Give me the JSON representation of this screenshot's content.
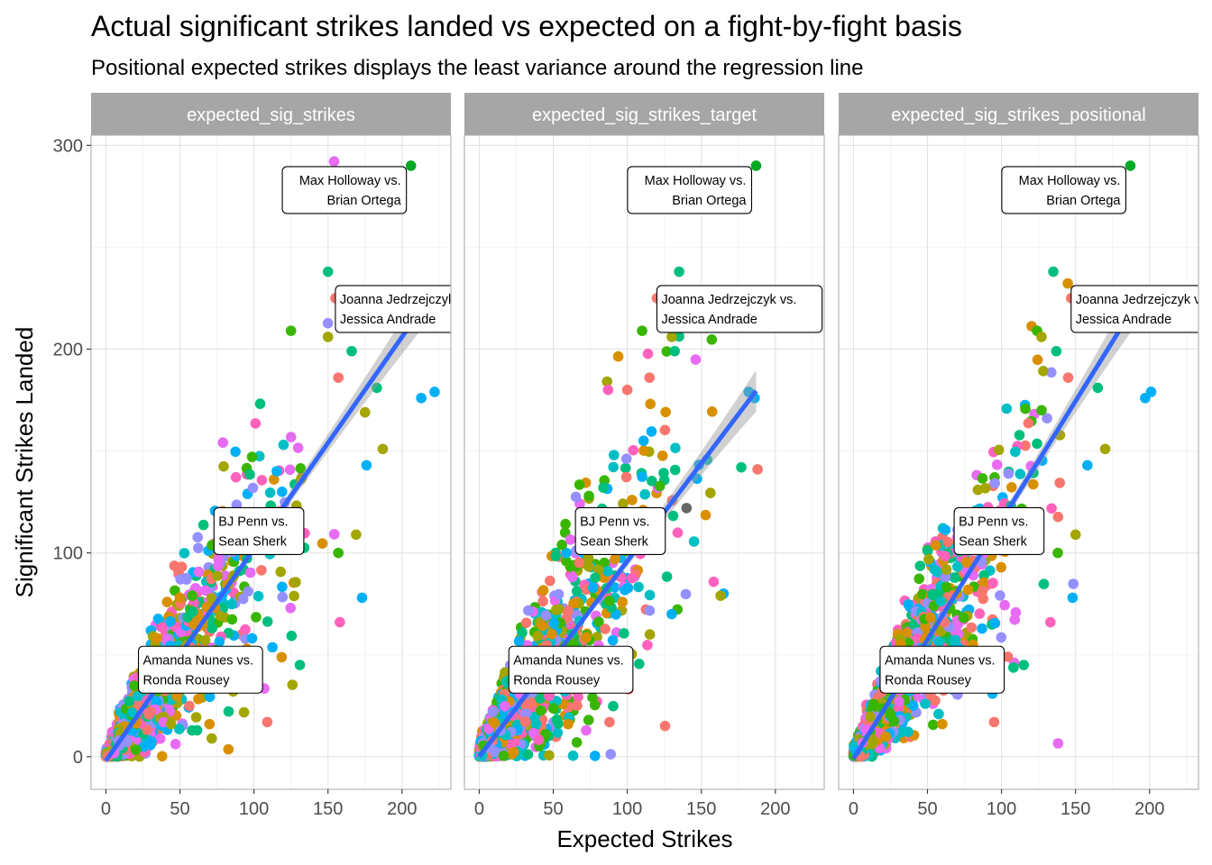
{
  "chart_data": {
    "type": "scatter",
    "title": "Actual significant strikes landed vs expected on a fight-by-fight basis",
    "subtitle": "Positional expected strikes displays the least variance around the regression line",
    "xlabel": "Expected Strikes",
    "ylabel": "Significant Strikes Landed",
    "xlim": [
      -10,
      233
    ],
    "ylim": [
      -16,
      305
    ],
    "x_ticks": [
      0,
      50,
      100,
      150,
      200
    ],
    "y_ticks": [
      0,
      100,
      200,
      300
    ],
    "grid": true,
    "legend": "none",
    "point_colors": [
      "#F8766D",
      "#D89000",
      "#A3A500",
      "#39B600",
      "#00BF7D",
      "#00BFC4",
      "#00B0F6",
      "#9590FF",
      "#E76BF3",
      "#FF62BC"
    ],
    "regression_color": "#3366FF",
    "panels": [
      {
        "name": "expected_sig_strikes",
        "slope": 1.04,
        "intercept": -2,
        "fit_xmax": 215,
        "spread": 0.3,
        "highlight_points": [
          {
            "x": 206,
            "y": 290,
            "color": "#00A824"
          },
          {
            "x": 150,
            "y": 238,
            "color": "#00BF7D"
          },
          {
            "x": 155,
            "y": 225,
            "color": "#F8766D"
          },
          {
            "x": 125,
            "y": 209,
            "color": "#39B600"
          },
          {
            "x": 150,
            "y": 206,
            "color": "#A3A500"
          },
          {
            "x": 166,
            "y": 199,
            "color": "#00BF7D"
          },
          {
            "x": 157,
            "y": 186,
            "color": "#F8766D"
          },
          {
            "x": 183,
            "y": 181,
            "color": "#00BF7D"
          },
          {
            "x": 222,
            "y": 179,
            "color": "#00B0F6"
          },
          {
            "x": 213,
            "y": 176,
            "color": "#00B0F6"
          },
          {
            "x": 175,
            "y": 169,
            "color": "#A3A500"
          },
          {
            "x": 187,
            "y": 151,
            "color": "#A3A500"
          },
          {
            "x": 176,
            "y": 143,
            "color": "#00B0F6"
          },
          {
            "x": 169,
            "y": 109,
            "color": "#A3A500"
          },
          {
            "x": 157,
            "y": 100,
            "color": "#39B600"
          },
          {
            "x": 173,
            "y": 78,
            "color": "#00B0F6"
          },
          {
            "x": 158,
            "y": 66,
            "color": "#FF62BC"
          },
          {
            "x": 131,
            "y": 45,
            "color": "#00BF7D"
          },
          {
            "x": 109,
            "y": 17,
            "color": "#F8766D"
          },
          {
            "x": 70,
            "y": 16,
            "color": "#D89000"
          }
        ],
        "annotations": [
          {
            "x": 206,
            "y": 290,
            "lines": [
              "Max Holloway vs.",
              "Brian Ortega"
            ]
          },
          {
            "x": 155,
            "y": 225,
            "lines": [
              "Joanna Jedrzejczyk vs.",
              "Jessica Andrade"
            ]
          },
          {
            "x": 73,
            "y": 116,
            "lines": [
              "BJ Penn vs.",
              "Sean Sherk"
            ]
          },
          {
            "x": 22,
            "y": 48,
            "lines": [
              "Amanda Nunes vs.",
              "Ronda Rousey"
            ]
          }
        ]
      },
      {
        "name": "expected_sig_strikes_target",
        "slope": 0.96,
        "intercept": 0,
        "fit_xmax": 187,
        "spread": 0.38,
        "highlight_points": [
          {
            "x": 187,
            "y": 290,
            "color": "#00A824"
          },
          {
            "x": 135,
            "y": 238,
            "color": "#00BF7D"
          },
          {
            "x": 120,
            "y": 225,
            "color": "#F8766D"
          },
          {
            "x": 110,
            "y": 209,
            "color": "#39B600"
          },
          {
            "x": 130,
            "y": 206,
            "color": "#A3A500"
          },
          {
            "x": 132,
            "y": 199,
            "color": "#00BF7D"
          },
          {
            "x": 115,
            "y": 186,
            "color": "#F8766D"
          },
          {
            "x": 100,
            "y": 180,
            "color": "#F8766D"
          },
          {
            "x": 182,
            "y": 179,
            "color": "#00B0F6"
          },
          {
            "x": 186,
            "y": 176,
            "color": "#00B0F6"
          },
          {
            "x": 188,
            "y": 141,
            "color": "#F8766D"
          },
          {
            "x": 177,
            "y": 142,
            "color": "#00BF7D"
          },
          {
            "x": 140,
            "y": 122,
            "color": "#666666"
          },
          {
            "x": 165,
            "y": 80,
            "color": "#00B0F6"
          },
          {
            "x": 163,
            "y": 79,
            "color": "#A3A500"
          },
          {
            "x": 130,
            "y": 70,
            "color": "#00B0F6"
          },
          {
            "x": 88,
            "y": 17,
            "color": "#F8766D"
          },
          {
            "x": 60,
            "y": 16,
            "color": "#D89000"
          }
        ],
        "annotations": [
          {
            "x": 187,
            "y": 290,
            "lines": [
              "Max Holloway vs.",
              "Brian Ortega"
            ]
          },
          {
            "x": 120,
            "y": 225,
            "lines": [
              "Joanna Jedrzejczyk vs.",
              "Jessica Andrade"
            ]
          },
          {
            "x": 65,
            "y": 116,
            "lines": [
              "BJ Penn vs.",
              "Sean Sherk"
            ]
          },
          {
            "x": 20,
            "y": 48,
            "lines": [
              "Amanda Nunes vs.",
              "Ronda Rousey"
            ]
          }
        ]
      },
      {
        "name": "expected_sig_strikes_positional",
        "slope": 1.17,
        "intercept": -1,
        "fit_xmax": 190,
        "spread": 0.26,
        "highlight_points": [
          {
            "x": 187,
            "y": 290,
            "color": "#00A824"
          },
          {
            "x": 135,
            "y": 238,
            "color": "#00BF7D"
          },
          {
            "x": 147,
            "y": 225,
            "color": "#F8766D"
          },
          {
            "x": 124,
            "y": 209,
            "color": "#39B600"
          },
          {
            "x": 127,
            "y": 206,
            "color": "#A3A500"
          },
          {
            "x": 137,
            "y": 199,
            "color": "#00BF7D"
          },
          {
            "x": 145,
            "y": 186,
            "color": "#F8766D"
          },
          {
            "x": 165,
            "y": 181,
            "color": "#00BF7D"
          },
          {
            "x": 201,
            "y": 179,
            "color": "#00B0F6"
          },
          {
            "x": 197,
            "y": 176,
            "color": "#00B0F6"
          },
          {
            "x": 170,
            "y": 151,
            "color": "#A3A500"
          },
          {
            "x": 158,
            "y": 143,
            "color": "#00B0F6"
          },
          {
            "x": 150,
            "y": 109,
            "color": "#A3A500"
          },
          {
            "x": 138,
            "y": 100,
            "color": "#39B600"
          },
          {
            "x": 148,
            "y": 78,
            "color": "#00B0F6"
          },
          {
            "x": 133,
            "y": 66,
            "color": "#FF62BC"
          },
          {
            "x": 115,
            "y": 45,
            "color": "#00BF7D"
          },
          {
            "x": 95,
            "y": 17,
            "color": "#F8766D"
          },
          {
            "x": 60,
            "y": 16,
            "color": "#D89000"
          }
        ],
        "annotations": [
          {
            "x": 187,
            "y": 290,
            "lines": [
              "Max Holloway vs.",
              "Brian Ortega"
            ]
          },
          {
            "x": 147,
            "y": 225,
            "lines": [
              "Joanna Jedrzejczyk vs.",
              "Jessica Andrade"
            ]
          },
          {
            "x": 68,
            "y": 116,
            "lines": [
              "BJ Penn vs.",
              "Sean Sherk"
            ]
          },
          {
            "x": 18,
            "y": 48,
            "lines": [
              "Amanda Nunes vs.",
              "Ronda Rousey"
            ]
          }
        ]
      }
    ]
  }
}
